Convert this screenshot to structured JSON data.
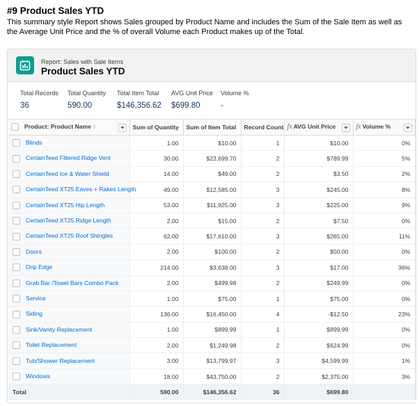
{
  "doc": {
    "title": "#9 Product Sales YTD",
    "description": "This summary style Report shows Sales grouped by Product Name and includes the Sum of the Sale Item as well as the Average Unit Price and the % of overall Volume each Product makes up of the Total."
  },
  "report": {
    "subtitle": "Report: Sales with Sale Items",
    "title": "Product Sales YTD",
    "icon": "report-icon",
    "accent": "#0b9e91"
  },
  "summary": [
    {
      "label": "Total Records",
      "value": "36"
    },
    {
      "label": "Total Quantity",
      "value": "590.00"
    },
    {
      "label": "Total Item Total",
      "value": "$146,356.62"
    },
    {
      "label": "AVG Unit Price",
      "value": "$699.80"
    },
    {
      "label": "Volume %",
      "value": "-"
    }
  ],
  "columns": [
    {
      "label": "Product: Product Name ↑",
      "fx": ""
    },
    {
      "label": "Sum of Quantity",
      "fx": ""
    },
    {
      "label": "Sum of Item Total",
      "fx": ""
    },
    {
      "label": "Record Count",
      "fx": ""
    },
    {
      "label": "AVG Unit Price",
      "fx": "fx"
    },
    {
      "label": "Volume %",
      "fx": "fx"
    }
  ],
  "rows": [
    [
      "Blinds",
      "1.00",
      "$10.00",
      "1",
      "$10.00",
      "0%"
    ],
    [
      "CertainTeed Filtered Ridge Vent",
      "30.00",
      "$23,699.70",
      "2",
      "$789.99",
      "5%"
    ],
    [
      "CertainTeed Ice & Water Shield",
      "14.00",
      "$49.00",
      "2",
      "$3.50",
      "2%"
    ],
    [
      "CertainTeed XT25 Eaves + Rakes Length",
      "49.00",
      "$12,585.00",
      "3",
      "$245.00",
      "8%"
    ],
    [
      "CertainTeed XT25 Hip Length",
      "53.00",
      "$11,925.00",
      "3",
      "$225.00",
      "9%"
    ],
    [
      "CertainTeed XT25 Ridge Length",
      "2.00",
      "$15.00",
      "2",
      "$7.50",
      "0%"
    ],
    [
      "CertainTeed XT25 Roof Shingles",
      "62.00",
      "$17,610.00",
      "3",
      "$265.00",
      "11%"
    ],
    [
      "Doors",
      "2.00",
      "$100.00",
      "2",
      "$50.00",
      "0%"
    ],
    [
      "Drip Edge",
      "214.00",
      "$3,638.00",
      "3",
      "$17.00",
      "36%"
    ],
    [
      "Grab Bar /Towel Bars Combo Pack",
      "2.00",
      "$499.98",
      "2",
      "$249.99",
      "0%"
    ],
    [
      "Service",
      "1.00",
      "$75.00",
      "1",
      "$75.00",
      "0%"
    ],
    [
      "Siding",
      "136.00",
      "$16,450.00",
      "4",
      "-$12.50",
      "23%"
    ],
    [
      "Sink/Vanity Replacement",
      "1.00",
      "$899.99",
      "1",
      "$899.99",
      "0%"
    ],
    [
      "Toilet Replacement",
      "2.00",
      "$1,249.98",
      "2",
      "$624.99",
      "0%"
    ],
    [
      "Tub/Shower Replacement",
      "3.00",
      "$13,799.97",
      "3",
      "$4,599.99",
      "1%"
    ],
    [
      "Windows",
      "18.00",
      "$43,750.00",
      "2",
      "$2,375.00",
      "3%"
    ]
  ],
  "total": [
    "Total",
    "590.00",
    "$146,356.62",
    "36",
    "$699.80",
    ""
  ]
}
